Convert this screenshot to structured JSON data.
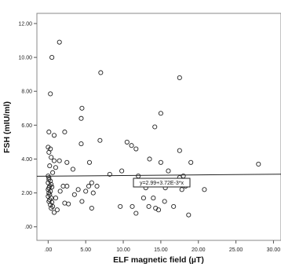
{
  "chart_data": {
    "type": "scatter",
    "xlabel": "ELF magnetic field (µT)",
    "ylabel": "FSH (mIU/ml)",
    "xlim": [
      -1.5,
      31
    ],
    "ylim": [
      -0.8,
      12.6
    ],
    "x_ticks": [
      0,
      5,
      10,
      15,
      20,
      25,
      30
    ],
    "x_tick_labels": [
      ".00",
      "5.00",
      "10.00",
      "15.00",
      "20.00",
      "25.00",
      "30.00"
    ],
    "y_ticks": [
      0,
      2,
      4,
      6,
      8,
      10,
      12
    ],
    "y_tick_labels": [
      ".00",
      "2.00",
      "4.00",
      "6.00",
      "8.00",
      "10.00",
      "12.00"
    ],
    "grid": false,
    "marker": "open-circle",
    "fit_line": {
      "intercept": 2.99,
      "slope": 0.00372,
      "label": "y=2.99+3.72E-3*x"
    },
    "points": [
      [
        0.5,
        10.0
      ],
      [
        1.5,
        10.9
      ],
      [
        0.3,
        7.85
      ],
      [
        7.0,
        9.1
      ],
      [
        17.5,
        8.8
      ],
      [
        0.1,
        5.6
      ],
      [
        0.8,
        5.4
      ],
      [
        2.2,
        5.6
      ],
      [
        4.5,
        7.0
      ],
      [
        4.4,
        6.4
      ],
      [
        14.2,
        5.9
      ],
      [
        15.0,
        6.7
      ],
      [
        0.0,
        4.7
      ],
      [
        0.3,
        4.6
      ],
      [
        0.1,
        4.4
      ],
      [
        0.4,
        4.1
      ],
      [
        0.8,
        3.9
      ],
      [
        1.5,
        3.9
      ],
      [
        4.4,
        4.9
      ],
      [
        6.9,
        5.1
      ],
      [
        10.5,
        5.0
      ],
      [
        11.1,
        4.8
      ],
      [
        11.7,
        4.6
      ],
      [
        13.5,
        4.0
      ],
      [
        17.5,
        4.5
      ],
      [
        0.2,
        3.6
      ],
      [
        0.6,
        3.2
      ],
      [
        1.0,
        3.5
      ],
      [
        2.5,
        3.8
      ],
      [
        3.3,
        3.4
      ],
      [
        5.5,
        3.8
      ],
      [
        8.2,
        3.1
      ],
      [
        9.8,
        3.3
      ],
      [
        12.0,
        3.0
      ],
      [
        15.0,
        3.8
      ],
      [
        16.0,
        3.3
      ],
      [
        18.0,
        3.0
      ],
      [
        19.0,
        3.8
      ],
      [
        28.0,
        3.7
      ],
      [
        0.0,
        3.0
      ],
      [
        0.1,
        2.9
      ],
      [
        0.1,
        2.8
      ],
      [
        0.3,
        2.7
      ],
      [
        0.0,
        2.6
      ],
      [
        0.4,
        2.5
      ],
      [
        0.2,
        2.4
      ],
      [
        0.1,
        2.3
      ],
      [
        0.5,
        2.35
      ],
      [
        0.0,
        2.2
      ],
      [
        0.3,
        2.1
      ],
      [
        0.1,
        2.0
      ],
      [
        0.2,
        1.9
      ],
      [
        0.0,
        1.8
      ],
      [
        0.4,
        1.7
      ],
      [
        0.2,
        1.6
      ],
      [
        0.1,
        1.5
      ],
      [
        0.5,
        1.45
      ],
      [
        0.3,
        1.3
      ],
      [
        0.6,
        1.2
      ],
      [
        0.4,
        1.1
      ],
      [
        0.8,
        0.85
      ],
      [
        1.2,
        1.0
      ],
      [
        1.0,
        1.7
      ],
      [
        1.6,
        2.1
      ],
      [
        2.0,
        2.4
      ],
      [
        2.5,
        2.4
      ],
      [
        2.2,
        1.4
      ],
      [
        2.7,
        1.35
      ],
      [
        3.5,
        1.9
      ],
      [
        4.0,
        2.2
      ],
      [
        4.5,
        1.5
      ],
      [
        5.0,
        2.1
      ],
      [
        5.4,
        2.4
      ],
      [
        5.8,
        2.6
      ],
      [
        6.5,
        2.4
      ],
      [
        6.0,
        2.0
      ],
      [
        5.8,
        1.1
      ],
      [
        9.6,
        1.2
      ],
      [
        11.2,
        1.2
      ],
      [
        11.7,
        0.8
      ],
      [
        12.7,
        1.7
      ],
      [
        13.0,
        2.3
      ],
      [
        13.4,
        1.2
      ],
      [
        14.0,
        1.7
      ],
      [
        14.3,
        1.1
      ],
      [
        14.7,
        1.0
      ],
      [
        15.5,
        1.5
      ],
      [
        15.6,
        2.3
      ],
      [
        16.2,
        2.6
      ],
      [
        16.7,
        1.2
      ],
      [
        17.5,
        2.9
      ],
      [
        17.8,
        2.2
      ],
      [
        18.3,
        2.4
      ],
      [
        18.7,
        0.7
      ],
      [
        20.8,
        2.2
      ]
    ]
  }
}
